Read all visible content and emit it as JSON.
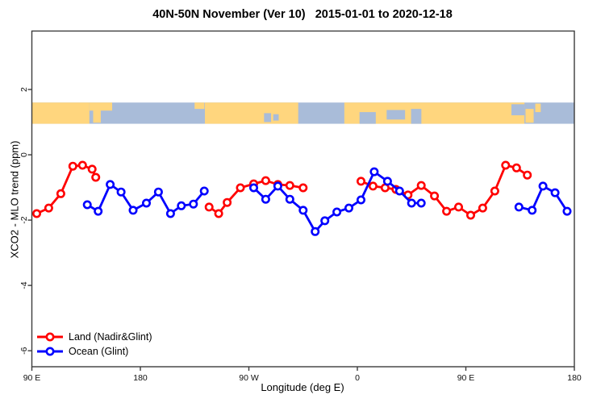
{
  "header": {
    "title": "40N-50N November (Ver 10)   2015-01-01 to 2020-12-18"
  },
  "colors": {
    "land_series": "#ff0000",
    "ocean_series": "#0000ff",
    "band_land": "#ffd67e",
    "band_ocean": "#a9bcd9",
    "axis": "#3c3c3c",
    "tick_text": "#111111"
  },
  "chart_data": {
    "type": "line",
    "title": "40N-50N November (Ver 10)   2015-01-01 to 2020-12-18",
    "xlabel": "Longitude (deg E)",
    "ylabel": "XCO2 - MLO trend (ppm)",
    "grid": false,
    "legend_position": "bottom-left",
    "x_axis": {
      "range": [
        90,
        540
      ],
      "ticks": [
        {
          "value": 90,
          "label": "90 E"
        },
        {
          "value": 180,
          "label": "180"
        },
        {
          "value": 270,
          "label": "90 W"
        },
        {
          "value": 360,
          "label": "0"
        },
        {
          "value": 450,
          "label": "90 E"
        },
        {
          "value": 540,
          "label": "180"
        }
      ]
    },
    "y_axis": {
      "range": [
        -6.49,
        3.79
      ],
      "ticks": [
        {
          "value": 2,
          "label": "2"
        },
        {
          "value": 0,
          "label": "0"
        },
        {
          "value": -2,
          "label": "-2"
        },
        {
          "value": -4,
          "label": "-4"
        },
        {
          "value": -6,
          "label": "-6"
        }
      ]
    },
    "map_band": {
      "y_range": [
        0.95,
        1.6
      ],
      "land_segments": [
        [
          0.0,
          0.106
        ],
        [
          0.319,
          0.491
        ],
        [
          0.576,
          0.908
        ]
      ],
      "land_patches": [
        {
          "x": [
            0.106,
            0.148
          ],
          "y": [
            0.0,
            0.38
          ]
        },
        {
          "x": [
            0.113,
            0.127
          ],
          "y": [
            0.3,
            0.95
          ]
        },
        {
          "x": [
            0.3,
            0.318
          ],
          "y": [
            0.0,
            0.3
          ]
        },
        {
          "x": [
            0.91,
            0.925
          ],
          "y": [
            0.3,
            0.95
          ]
        },
        {
          "x": [
            0.928,
            0.938
          ],
          "y": [
            0.05,
            0.45
          ]
        }
      ],
      "water_patches": [
        {
          "x": [
            0.428,
            0.441
          ],
          "y": [
            0.5,
            0.92
          ]
        },
        {
          "x": [
            0.445,
            0.455
          ],
          "y": [
            0.55,
            0.85
          ]
        },
        {
          "x": [
            0.604,
            0.634
          ],
          "y": [
            0.45,
            1.0
          ]
        },
        {
          "x": [
            0.654,
            0.688
          ],
          "y": [
            0.35,
            0.8
          ]
        },
        {
          "x": [
            0.699,
            0.718
          ],
          "y": [
            0.3,
            1.0
          ]
        },
        {
          "x": [
            0.884,
            0.908
          ],
          "y": [
            0.08,
            0.6
          ]
        }
      ]
    },
    "series": [
      {
        "id": "land",
        "name": "Land (Nadir&Glint)",
        "color": "#ff0000",
        "segments": [
          [
            [
              94,
              -1.8
            ],
            [
              104,
              -1.63
            ],
            [
              114,
              -1.19
            ],
            [
              124,
              -0.35
            ],
            [
              132,
              -0.32
            ],
            [
              140,
              -0.44
            ],
            [
              143,
              -0.69
            ]
          ],
          [
            [
              237,
              -1.6
            ],
            [
              245,
              -1.8
            ],
            [
              252,
              -1.46
            ],
            [
              263,
              -1.01
            ],
            [
              274,
              -0.89
            ],
            [
              284,
              -0.79
            ],
            [
              294,
              -0.91
            ],
            [
              304,
              -0.94
            ],
            [
              315,
              -1.01
            ]
          ],
          [
            [
              363,
              -0.81
            ],
            [
              373,
              -0.96
            ],
            [
              383,
              -1.01
            ],
            [
              392,
              -1.06
            ],
            [
              402,
              -1.23
            ],
            [
              413,
              -0.94
            ],
            [
              424,
              -1.26
            ],
            [
              434,
              -1.73
            ],
            [
              444,
              -1.6
            ],
            [
              454,
              -1.85
            ],
            [
              464,
              -1.63
            ],
            [
              474,
              -1.11
            ],
            [
              483,
              -0.32
            ],
            [
              492,
              -0.4
            ],
            [
              501,
              -0.62
            ]
          ]
        ]
      },
      {
        "id": "ocean",
        "name": "Ocean (Glint)",
        "color": "#0000ff",
        "segments": [
          [
            [
              136,
              -1.53
            ],
            [
              145,
              -1.73
            ],
            [
              155,
              -0.91
            ],
            [
              164,
              -1.14
            ],
            [
              174,
              -1.7
            ],
            [
              185,
              -1.48
            ],
            [
              195,
              -1.14
            ],
            [
              205,
              -1.8
            ],
            [
              214,
              -1.56
            ],
            [
              224,
              -1.51
            ],
            [
              233,
              -1.11
            ]
          ],
          [
            [
              274,
              -1.01
            ],
            [
              284,
              -1.36
            ],
            [
              294,
              -0.96
            ],
            [
              304,
              -1.36
            ],
            [
              315,
              -1.7
            ],
            [
              325,
              -2.35
            ],
            [
              333,
              -2.02
            ],
            [
              343,
              -1.75
            ],
            [
              353,
              -1.63
            ],
            [
              363,
              -1.38
            ],
            [
              374,
              -0.52
            ],
            [
              385,
              -0.81
            ],
            [
              395,
              -1.11
            ],
            [
              405,
              -1.48
            ],
            [
              413,
              -1.48
            ]
          ],
          [
            [
              494,
              -1.6
            ],
            [
              505,
              -1.7
            ],
            [
              514,
              -0.96
            ],
            [
              524,
              -1.16
            ],
            [
              534,
              -1.73
            ]
          ]
        ]
      }
    ]
  }
}
